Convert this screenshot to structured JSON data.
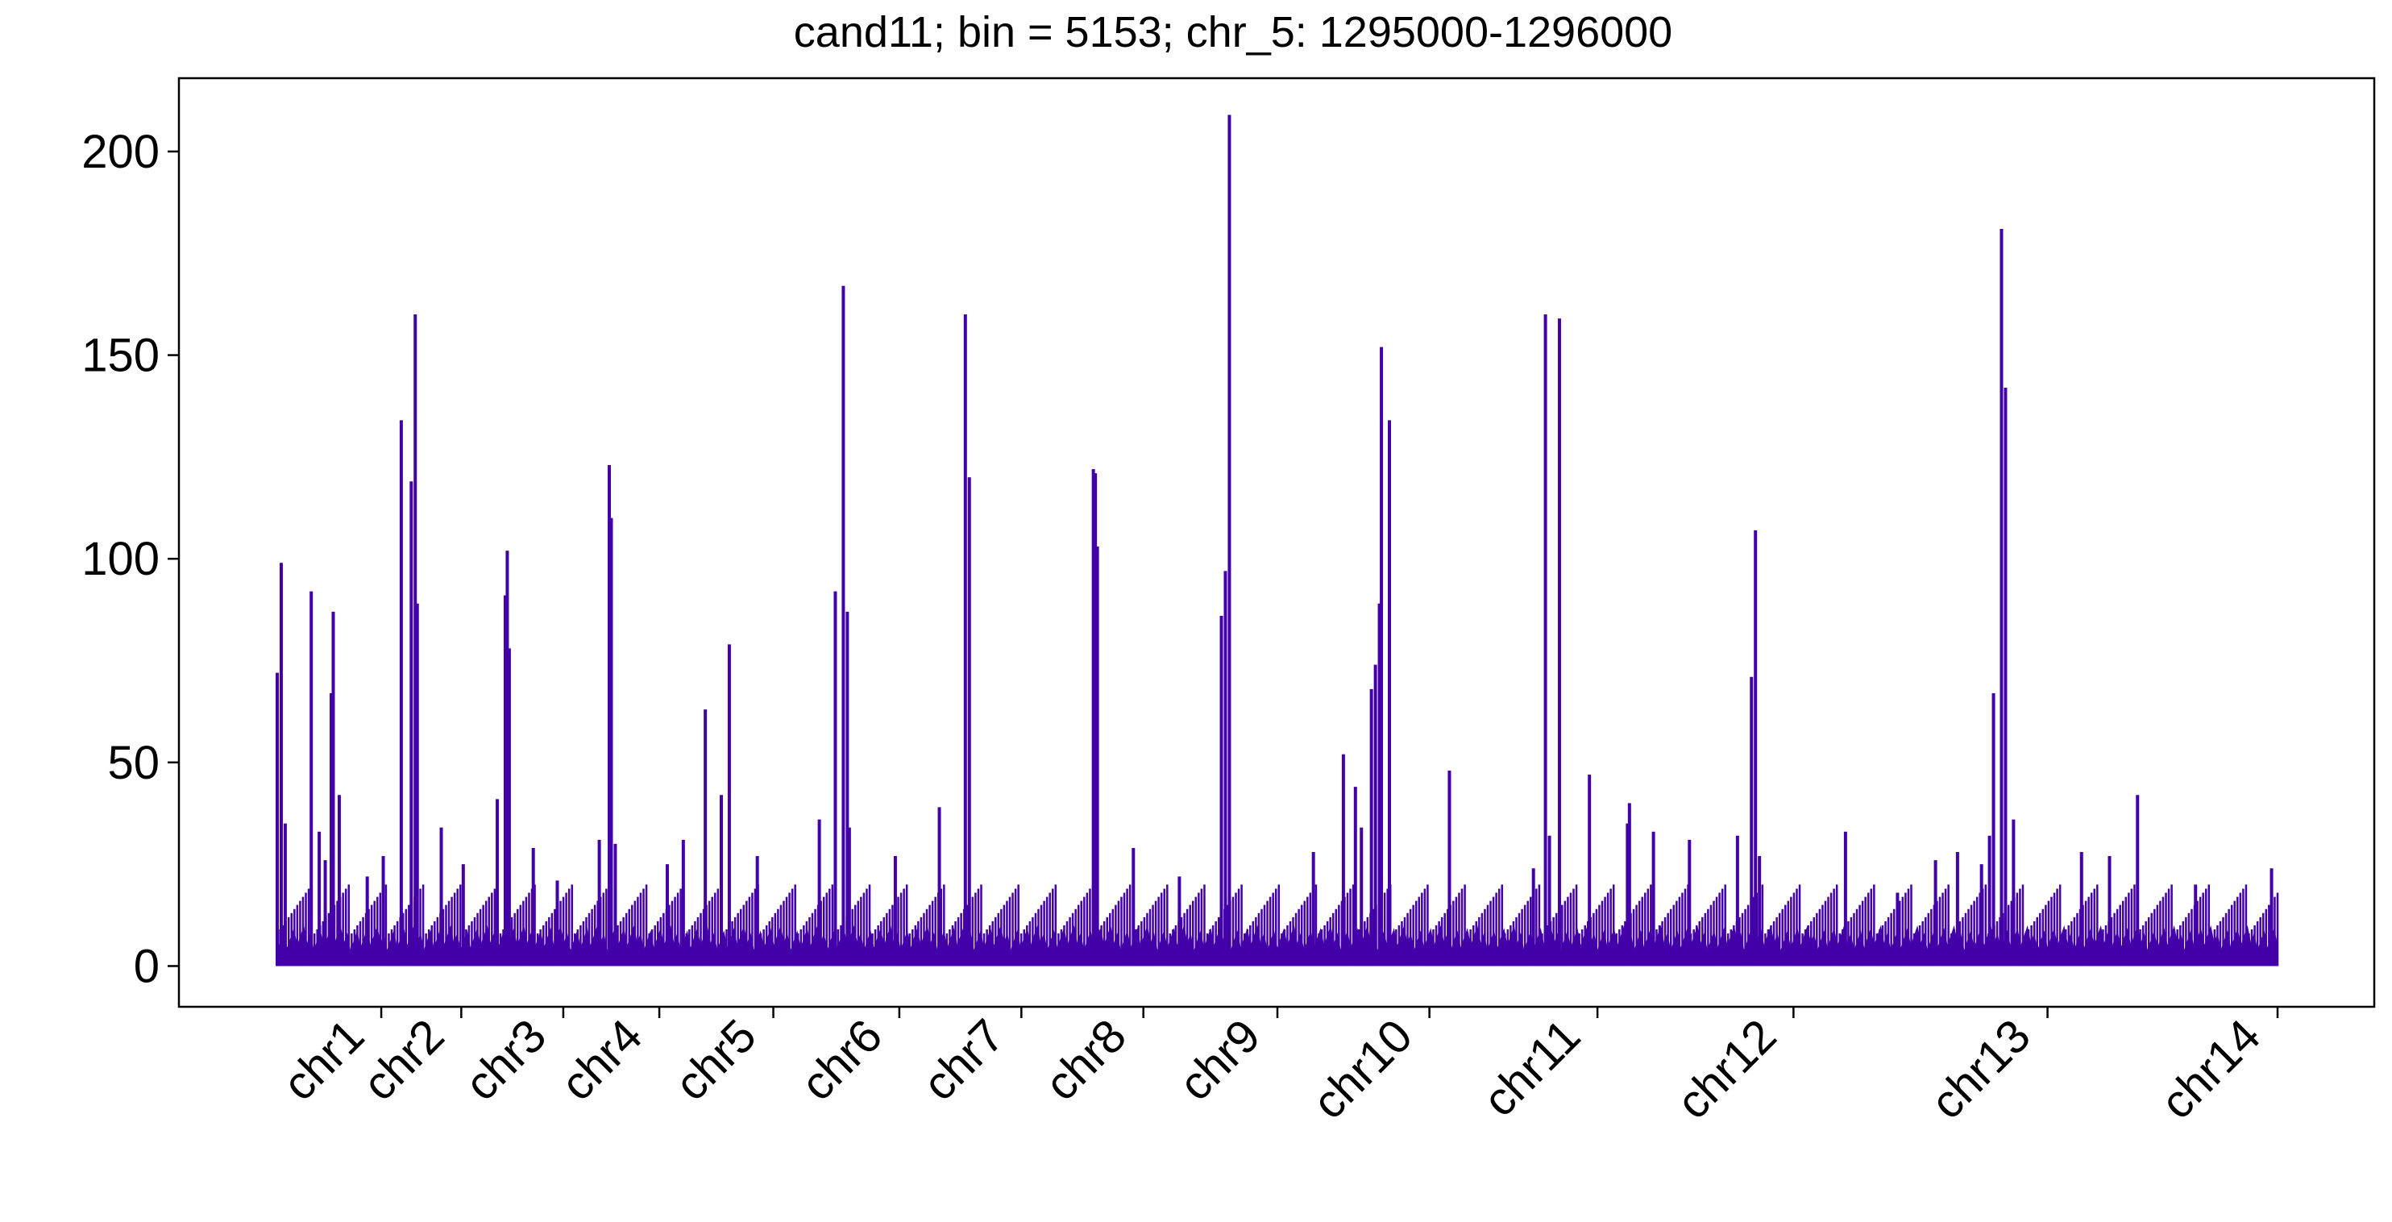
{
  "chart_data": {
    "type": "line",
    "title": "cand11; bin = 5153; chr_5: 1295000-1296000",
    "xlabel": "",
    "ylabel": "",
    "ylim": [
      -10,
      218
    ],
    "yticks": [
      0,
      50,
      100,
      150,
      200
    ],
    "grid": false,
    "line_color": "#4400A8",
    "categories": [
      "chr1",
      "chr2",
      "chr3",
      "chr4",
      "chr5",
      "chr6",
      "chr7",
      "chr8",
      "chr9",
      "chr10",
      "chr11",
      "chr12",
      "chr13",
      "chr14"
    ],
    "category_boundaries": [
      0.0,
      0.052,
      0.092,
      0.143,
      0.191,
      0.248,
      0.311,
      0.372,
      0.433,
      0.5,
      0.576,
      0.66,
      0.758,
      0.885,
      1.0
    ],
    "peaks": [
      {
        "x": 0.0,
        "value": 72
      },
      {
        "x": 0.002,
        "value": 99
      },
      {
        "x": 0.004,
        "value": 35
      },
      {
        "x": 0.017,
        "value": 92
      },
      {
        "x": 0.021,
        "value": 33
      },
      {
        "x": 0.024,
        "value": 26
      },
      {
        "x": 0.027,
        "value": 67
      },
      {
        "x": 0.028,
        "value": 87
      },
      {
        "x": 0.031,
        "value": 42
      },
      {
        "x": 0.045,
        "value": 22
      },
      {
        "x": 0.053,
        "value": 27
      },
      {
        "x": 0.062,
        "value": 134
      },
      {
        "x": 0.067,
        "value": 119
      },
      {
        "x": 0.069,
        "value": 160
      },
      {
        "x": 0.07,
        "value": 89
      },
      {
        "x": 0.082,
        "value": 34
      },
      {
        "x": 0.093,
        "value": 25
      },
      {
        "x": 0.11,
        "value": 41
      },
      {
        "x": 0.114,
        "value": 91
      },
      {
        "x": 0.115,
        "value": 102
      },
      {
        "x": 0.116,
        "value": 78
      },
      {
        "x": 0.128,
        "value": 29
      },
      {
        "x": 0.14,
        "value": 21
      },
      {
        "x": 0.161,
        "value": 31
      },
      {
        "x": 0.166,
        "value": 123
      },
      {
        "x": 0.167,
        "value": 110
      },
      {
        "x": 0.169,
        "value": 30
      },
      {
        "x": 0.195,
        "value": 25
      },
      {
        "x": 0.203,
        "value": 31
      },
      {
        "x": 0.214,
        "value": 63
      },
      {
        "x": 0.222,
        "value": 42
      },
      {
        "x": 0.226,
        "value": 79
      },
      {
        "x": 0.24,
        "value": 27
      },
      {
        "x": 0.271,
        "value": 36
      },
      {
        "x": 0.279,
        "value": 92
      },
      {
        "x": 0.283,
        "value": 167
      },
      {
        "x": 0.285,
        "value": 87
      },
      {
        "x": 0.286,
        "value": 34
      },
      {
        "x": 0.309,
        "value": 27
      },
      {
        "x": 0.331,
        "value": 39
      },
      {
        "x": 0.344,
        "value": 160
      },
      {
        "x": 0.346,
        "value": 120
      },
      {
        "x": 0.41,
        "value": 103
      },
      {
        "x": 0.408,
        "value": 122
      },
      {
        "x": 0.409,
        "value": 121
      },
      {
        "x": 0.428,
        "value": 29
      },
      {
        "x": 0.451,
        "value": 22
      },
      {
        "x": 0.472,
        "value": 86
      },
      {
        "x": 0.474,
        "value": 97
      },
      {
        "x": 0.476,
        "value": 209
      },
      {
        "x": 0.518,
        "value": 28
      },
      {
        "x": 0.533,
        "value": 52
      },
      {
        "x": 0.539,
        "value": 44
      },
      {
        "x": 0.542,
        "value": 34
      },
      {
        "x": 0.547,
        "value": 68
      },
      {
        "x": 0.549,
        "value": 74
      },
      {
        "x": 0.551,
        "value": 89
      },
      {
        "x": 0.552,
        "value": 152
      },
      {
        "x": 0.556,
        "value": 134
      },
      {
        "x": 0.586,
        "value": 48
      },
      {
        "x": 0.628,
        "value": 24
      },
      {
        "x": 0.634,
        "value": 160
      },
      {
        "x": 0.636,
        "value": 32
      },
      {
        "x": 0.641,
        "value": 159
      },
      {
        "x": 0.656,
        "value": 47
      },
      {
        "x": 0.675,
        "value": 35
      },
      {
        "x": 0.676,
        "value": 40
      },
      {
        "x": 0.688,
        "value": 33
      },
      {
        "x": 0.706,
        "value": 31
      },
      {
        "x": 0.73,
        "value": 32
      },
      {
        "x": 0.737,
        "value": 71
      },
      {
        "x": 0.739,
        "value": 107
      },
      {
        "x": 0.741,
        "value": 27
      },
      {
        "x": 0.784,
        "value": 33
      },
      {
        "x": 0.81,
        "value": 18
      },
      {
        "x": 0.829,
        "value": 26
      },
      {
        "x": 0.84,
        "value": 28
      },
      {
        "x": 0.852,
        "value": 25
      },
      {
        "x": 0.856,
        "value": 32
      },
      {
        "x": 0.858,
        "value": 67
      },
      {
        "x": 0.862,
        "value": 181
      },
      {
        "x": 0.864,
        "value": 142
      },
      {
        "x": 0.868,
        "value": 36
      },
      {
        "x": 0.902,
        "value": 28
      },
      {
        "x": 0.916,
        "value": 27
      },
      {
        "x": 0.93,
        "value": 42
      },
      {
        "x": 0.959,
        "value": 20
      },
      {
        "x": 0.997,
        "value": 24
      }
    ]
  }
}
